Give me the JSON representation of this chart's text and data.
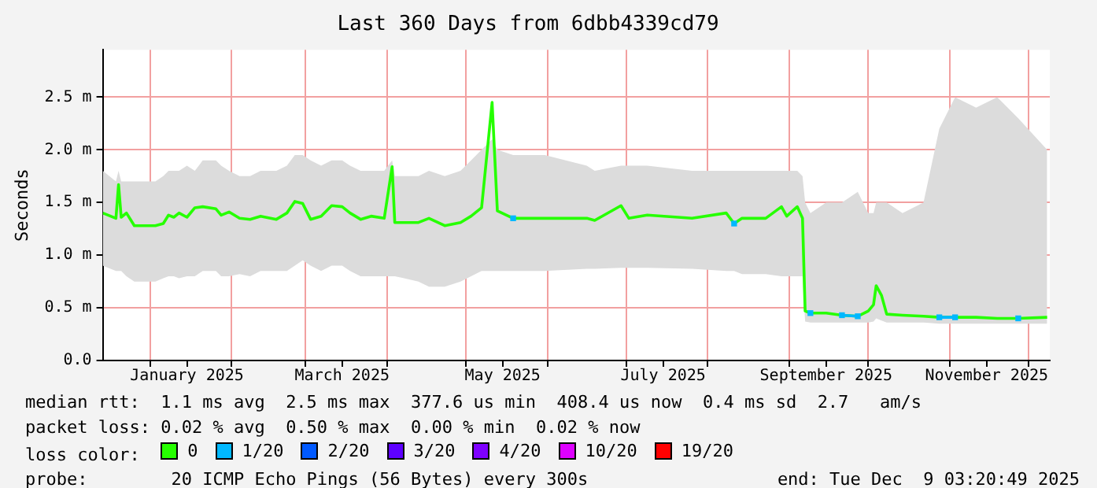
{
  "chart_data": {
    "type": "line",
    "title": "Last 360 Days from 6dbb4339cd79",
    "ylabel": "Seconds",
    "legend": "bottom",
    "legend_title": "loss color:",
    "grid": true,
    "x": [
      "2024-12-14",
      "2024-12-19",
      "2024-12-20",
      "2024-12-21",
      "2024-12-23",
      "2024-12-26",
      "2025-01-03",
      "2025-01-06",
      "2025-01-08",
      "2025-01-10",
      "2025-01-12",
      "2025-01-15",
      "2025-01-18",
      "2025-01-21",
      "2025-01-26",
      "2025-01-28",
      "2025-01-31",
      "2025-02-04",
      "2025-02-08",
      "2025-02-12",
      "2025-02-18",
      "2025-02-22",
      "2025-02-25",
      "2025-02-28",
      "2025-03-03",
      "2025-03-07",
      "2025-03-11",
      "2025-03-15",
      "2025-03-18",
      "2025-03-22",
      "2025-03-26",
      "2025-03-31",
      "2025-04-03",
      "2025-04-04",
      "2025-04-13",
      "2025-04-17",
      "2025-04-23",
      "2025-04-29",
      "2025-05-03",
      "2025-05-07",
      "2025-05-11",
      "2025-05-13",
      "2025-05-19",
      "2025-05-31",
      "2025-06-16",
      "2025-06-19",
      "2025-06-29",
      "2025-07-02",
      "2025-07-09",
      "2025-07-26",
      "2025-08-08",
      "2025-08-11",
      "2025-08-14",
      "2025-08-23",
      "2025-08-29",
      "2025-08-31",
      "2025-09-04",
      "2025-09-06",
      "2025-09-07",
      "2025-09-09",
      "2025-09-15",
      "2025-09-21",
      "2025-09-27",
      "2025-10-01",
      "2025-10-03",
      "2025-10-04",
      "2025-10-06",
      "2025-10-08",
      "2025-10-14",
      "2025-10-22",
      "2025-10-28",
      "2025-11-03",
      "2025-11-11",
      "2025-11-19",
      "2025-11-27",
      "2025-12-08"
    ],
    "series": [
      {
        "name": "0",
        "color": "#26ff00",
        "marker": "none",
        "values": [
          1.4,
          1.35,
          1.67,
          1.36,
          1.4,
          1.28,
          1.28,
          1.3,
          1.38,
          1.36,
          1.4,
          1.36,
          1.45,
          1.46,
          1.44,
          1.38,
          1.41,
          1.35,
          1.34,
          1.37,
          1.34,
          1.4,
          1.51,
          1.49,
          1.34,
          1.37,
          1.47,
          1.46,
          1.4,
          1.34,
          1.37,
          1.35,
          1.84,
          1.31,
          1.31,
          1.35,
          1.28,
          1.31,
          1.37,
          1.45,
          2.45,
          1.42,
          1.35,
          1.35,
          1.35,
          1.33,
          1.47,
          1.35,
          1.38,
          1.35,
          1.4,
          1.3,
          1.35,
          1.35,
          1.46,
          1.37,
          1.46,
          1.35,
          0.47,
          0.45,
          0.45,
          0.43,
          0.42,
          0.47,
          0.53,
          0.71,
          0.62,
          0.44,
          0.43,
          0.42,
          0.41,
          0.41,
          0.41,
          0.4,
          0.4,
          0.41
        ],
        "lower": [
          0.9,
          0.85,
          0.85,
          0.85,
          0.8,
          0.75,
          0.75,
          0.78,
          0.8,
          0.8,
          0.78,
          0.8,
          0.8,
          0.85,
          0.85,
          0.8,
          0.8,
          0.82,
          0.8,
          0.85,
          0.85,
          0.85,
          0.9,
          0.95,
          0.9,
          0.85,
          0.9,
          0.9,
          0.85,
          0.8,
          0.8,
          0.8,
          0.8,
          0.8,
          0.75,
          0.7,
          0.7,
          0.75,
          0.8,
          0.85,
          0.85,
          0.85,
          0.85,
          0.85,
          0.87,
          0.87,
          0.88,
          0.88,
          0.88,
          0.87,
          0.85,
          0.85,
          0.82,
          0.82,
          0.8,
          0.8,
          0.8,
          0.8,
          0.37,
          0.36,
          0.36,
          0.36,
          0.36,
          0.36,
          0.37,
          0.4,
          0.38,
          0.36,
          0.36,
          0.36,
          0.35,
          0.35,
          0.35,
          0.35,
          0.35,
          0.35
        ],
        "upper": [
          1.8,
          1.7,
          1.8,
          1.7,
          1.7,
          1.7,
          1.7,
          1.75,
          1.8,
          1.8,
          1.8,
          1.85,
          1.8,
          1.9,
          1.9,
          1.85,
          1.8,
          1.75,
          1.75,
          1.8,
          1.8,
          1.85,
          1.95,
          1.95,
          1.9,
          1.85,
          1.9,
          1.9,
          1.85,
          1.8,
          1.8,
          1.8,
          1.9,
          1.75,
          1.75,
          1.8,
          1.75,
          1.8,
          1.9,
          2.0,
          2.1,
          2.0,
          1.95,
          1.95,
          1.85,
          1.8,
          1.85,
          1.85,
          1.85,
          1.8,
          1.8,
          1.8,
          1.8,
          1.8,
          1.8,
          1.8,
          1.8,
          1.75,
          1.5,
          1.4,
          1.5,
          1.5,
          1.6,
          1.4,
          1.4,
          1.5,
          1.5,
          1.5,
          1.4,
          1.5,
          2.2,
          2.5,
          2.4,
          2.5,
          2.3,
          2.0
        ]
      },
      {
        "name": "1/20",
        "color": "#00b8ff",
        "marker": "square",
        "values": [
          null,
          null,
          null,
          null,
          null,
          null,
          null,
          null,
          null,
          null,
          null,
          null,
          null,
          null,
          null,
          null,
          null,
          null,
          null,
          null,
          null,
          null,
          null,
          null,
          null,
          null,
          null,
          null,
          null,
          null,
          null,
          null,
          null,
          null,
          null,
          null,
          null,
          null,
          null,
          null,
          null,
          null,
          1.35,
          null,
          null,
          null,
          null,
          null,
          null,
          null,
          null,
          1.3,
          null,
          null,
          null,
          null,
          null,
          null,
          null,
          0.45,
          null,
          0.43,
          0.42,
          null,
          null,
          null,
          null,
          null,
          null,
          null,
          0.41,
          0.41,
          null,
          null,
          0.4,
          null
        ]
      },
      {
        "name": "2/20",
        "color": "#0059ff",
        "marker": "square",
        "values": [
          null,
          null,
          null,
          null,
          null,
          null,
          null,
          null,
          null,
          null,
          null,
          null,
          null,
          null,
          null,
          null,
          null,
          null,
          null,
          null,
          null,
          null,
          null,
          null,
          null,
          null,
          null,
          null,
          null,
          null,
          null,
          null,
          null,
          null,
          null,
          null,
          null,
          null,
          null,
          null,
          null,
          null,
          null,
          null,
          null,
          null,
          null,
          null,
          null,
          null,
          null,
          null,
          null,
          null,
          null,
          null,
          null,
          null,
          null,
          null,
          null,
          null,
          null,
          null,
          null,
          null,
          null,
          null,
          null,
          null,
          null,
          null,
          null,
          null,
          null,
          null
        ]
      },
      {
        "name": "3/20",
        "color": "#5e00ff",
        "marker": "square",
        "values": [
          null,
          null,
          null,
          null,
          null,
          null,
          null,
          null,
          null,
          null,
          null,
          null,
          null,
          null,
          null,
          null,
          null,
          null,
          null,
          null,
          null,
          null,
          null,
          null,
          null,
          null,
          null,
          null,
          null,
          null,
          null,
          null,
          null,
          null,
          null,
          null,
          null,
          null,
          null,
          null,
          null,
          null,
          null,
          null,
          null,
          null,
          null,
          null,
          null,
          null,
          null,
          null,
          null,
          null,
          null,
          null,
          null,
          null,
          null,
          null,
          null,
          null,
          null,
          null,
          null,
          null,
          null,
          null,
          null,
          null,
          null,
          null,
          null,
          null,
          null,
          null
        ]
      },
      {
        "name": "4/20",
        "color": "#7e00ff",
        "marker": "square",
        "values": [
          null,
          null,
          null,
          null,
          null,
          null,
          null,
          null,
          null,
          null,
          null,
          null,
          null,
          null,
          null,
          null,
          null,
          null,
          null,
          null,
          null,
          null,
          null,
          null,
          null,
          null,
          null,
          null,
          null,
          null,
          null,
          null,
          null,
          null,
          null,
          null,
          null,
          null,
          null,
          null,
          null,
          null,
          null,
          null,
          null,
          null,
          null,
          null,
          null,
          null,
          null,
          null,
          null,
          null,
          null,
          null,
          null,
          null,
          null,
          null,
          null,
          null,
          null,
          null,
          null,
          null,
          null,
          null,
          null,
          null,
          null,
          null,
          null,
          null,
          null,
          null
        ]
      },
      {
        "name": "10/20",
        "color": "#dd00ff",
        "marker": "square",
        "values": [
          null,
          null,
          null,
          null,
          null,
          null,
          null,
          null,
          null,
          null,
          null,
          null,
          null,
          null,
          null,
          null,
          null,
          null,
          null,
          null,
          null,
          null,
          null,
          null,
          null,
          null,
          null,
          null,
          null,
          null,
          null,
          null,
          null,
          null,
          null,
          null,
          null,
          null,
          null,
          null,
          null,
          null,
          null,
          null,
          null,
          null,
          null,
          null,
          null,
          null,
          null,
          null,
          null,
          null,
          null,
          null,
          null,
          null,
          null,
          null,
          null,
          null,
          null,
          null,
          null,
          null,
          null,
          null,
          null,
          null,
          null,
          null,
          null,
          null,
          null,
          null
        ]
      },
      {
        "name": "19/20",
        "color": "#ff0000",
        "marker": "square",
        "values": [
          null,
          null,
          null,
          null,
          null,
          null,
          null,
          null,
          null,
          null,
          null,
          null,
          null,
          null,
          null,
          null,
          null,
          null,
          null,
          null,
          null,
          null,
          null,
          null,
          null,
          null,
          null,
          null,
          null,
          null,
          null,
          null,
          null,
          null,
          null,
          null,
          null,
          null,
          null,
          null,
          null,
          null,
          null,
          null,
          null,
          null,
          null,
          null,
          null,
          null,
          null,
          null,
          null,
          null,
          null,
          null,
          null,
          null,
          null,
          null,
          null,
          null,
          null,
          null,
          null,
          null,
          null,
          null,
          null,
          null,
          null,
          null,
          null,
          null,
          null,
          null
        ]
      }
    ],
    "xlim": [
      "2024-12-14",
      "2025-12-09"
    ],
    "xticks": [
      {
        "value": "2025-01-01",
        "label": null
      },
      {
        "value": "2025-01-15",
        "label": "January 2025"
      },
      {
        "value": "2025-02-01",
        "label": null
      },
      {
        "value": "2025-03-01",
        "label": null
      },
      {
        "value": "2025-03-15",
        "label": "March 2025"
      },
      {
        "value": "2025-04-01",
        "label": null
      },
      {
        "value": "2025-05-01",
        "label": null
      },
      {
        "value": "2025-05-15",
        "label": "May 2025"
      },
      {
        "value": "2025-06-01",
        "label": null
      },
      {
        "value": "2025-07-01",
        "label": null
      },
      {
        "value": "2025-07-15",
        "label": "July 2025"
      },
      {
        "value": "2025-08-01",
        "label": null
      },
      {
        "value": "2025-09-01",
        "label": null
      },
      {
        "value": "2025-09-15",
        "label": "September 2025"
      },
      {
        "value": "2025-10-01",
        "label": null
      },
      {
        "value": "2025-11-01",
        "label": null
      },
      {
        "value": "2025-11-15",
        "label": "November 2025"
      },
      {
        "value": "2025-12-01",
        "label": null
      }
    ],
    "ylim": [
      0,
      2.95
    ],
    "yticks": [
      {
        "value": 0,
        "label": "0.0"
      },
      {
        "value": 0.5,
        "label": "0.5 m"
      },
      {
        "value": 1,
        "label": "1.0 m"
      },
      {
        "value": 1.5,
        "label": "1.5 m"
      },
      {
        "value": 2,
        "label": "2.0 m"
      },
      {
        "value": 2.5,
        "label": "2.5 m"
      }
    ],
    "annotations": [
      "median rtt:  1.1 ms avg  2.5 ms max  377.6 us min  408.4 us now  0.4 ms sd  2.7   am/s",
      "packet loss: 0.02 % avg  0.50 % max  0.00 % min  0.02 % now",
      "probe:        20 ICMP Echo Pings (56 Bytes) every 300s",
      "end: Tue Dec  9 03:20:49 2025"
    ]
  }
}
